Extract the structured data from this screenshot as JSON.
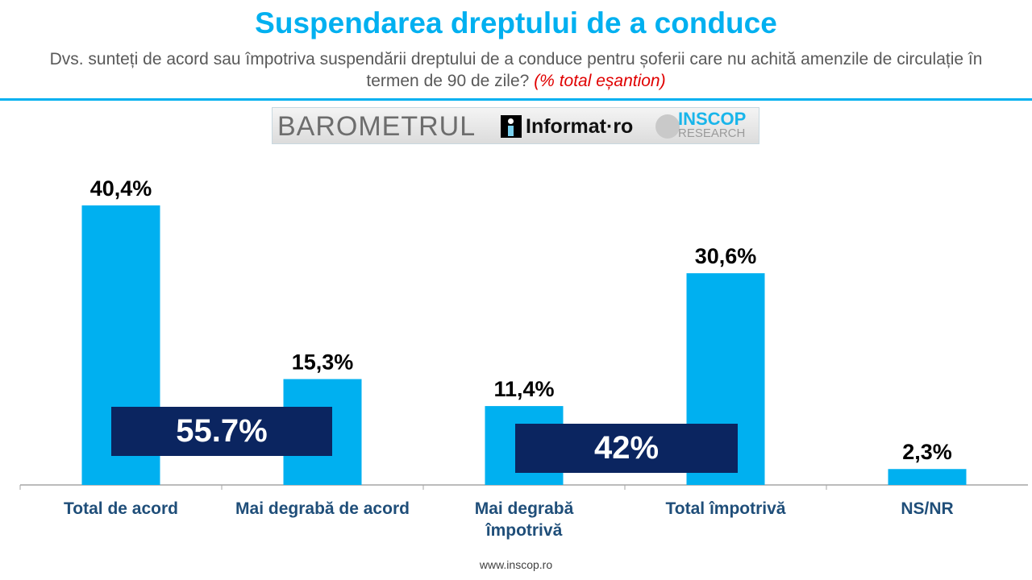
{
  "chart_data": {
    "type": "bar",
    "title": "Suspendarea dreptului de a conduce",
    "subtitle": "Dvs. sunteți de acord sau împotriva suspendării dreptului de a conduce pentru șoferii care nu achită amenzile de circulație în termen de 90 de zile?",
    "subtitle_note": "(% total eșantion)",
    "categories": [
      "Total de acord",
      "Mai degrabă de acord",
      "Mai degrabă împotrivă",
      "Total împotrivă",
      "NS/NR"
    ],
    "values": [
      40.4,
      15.3,
      11.4,
      30.6,
      2.3
    ],
    "data_labels": [
      "40,4%",
      "15,3%",
      "11,4%",
      "30,6%",
      "2,3%"
    ],
    "annotations": [
      "55.7%",
      "42%"
    ],
    "ylim": [
      0,
      45
    ],
    "grid": false,
    "bar_color": "#00b0f0",
    "annotation_color": "#0b2560"
  },
  "logo": {
    "barometrul": "BAROMETRUL",
    "informat": "Informat·ro",
    "inscop": "INSCOP",
    "research": "RESEARCH"
  },
  "footer": {
    "url": "www.inscop.ro"
  }
}
